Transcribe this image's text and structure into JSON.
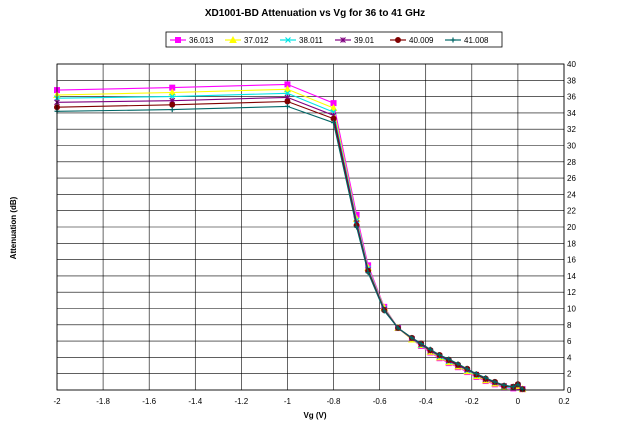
{
  "chart_data": {
    "type": "line",
    "title": "XD1001-BD Attenuation vs Vg for 36 to 41 GHz",
    "xlabel": "Vg (V)",
    "ylabel": "Attenuation (dB)",
    "xlim": [
      -2,
      0.2
    ],
    "ylim": [
      0,
      40
    ],
    "x_ticks": [
      -2,
      -1.8,
      -1.6,
      -1.4,
      -1.2,
      -1,
      -0.8,
      -0.6,
      -0.4,
      -0.2,
      0,
      0.2
    ],
    "x_tick_labels": [
      "-2",
      "-1.8",
      "-1.6",
      "-1.4",
      "-1.2",
      "-1",
      "-0.8",
      "-0.6",
      "-0.4",
      "-0.2",
      "0",
      "0.2"
    ],
    "y_ticks": [
      0,
      2,
      4,
      6,
      8,
      10,
      12,
      14,
      16,
      18,
      20,
      22,
      24,
      26,
      28,
      30,
      32,
      34,
      36,
      38,
      40
    ],
    "y_tick_labels": [
      "0",
      "2",
      "4",
      "6",
      "8",
      "10",
      "12",
      "14",
      "16",
      "18",
      "20",
      "22",
      "24",
      "26",
      "28",
      "30",
      "32",
      "34",
      "36",
      "38",
      "40"
    ],
    "grid": true,
    "y_axis_side": "right",
    "legend_position": "top",
    "x": [
      -2,
      -1.5,
      -1,
      -0.8,
      -0.7,
      -0.65,
      -0.58,
      -0.52,
      -0.46,
      -0.42,
      -0.38,
      -0.34,
      -0.3,
      -0.26,
      -0.22,
      -0.18,
      -0.14,
      -0.1,
      -0.06,
      -0.02,
      0,
      0.02
    ],
    "series": [
      {
        "name": "36.013",
        "color": "#ff00ff",
        "marker": "square",
        "values": [
          36.8,
          37.1,
          37.5,
          35.2,
          21.5,
          15.3,
          10.2,
          7.6,
          6.2,
          5.4,
          4.6,
          3.9,
          3.3,
          2.8,
          2.2,
          1.6,
          1.1,
          0.7,
          0.3,
          0.2,
          0.4,
          0.1
        ]
      },
      {
        "name": "37.012",
        "color": "#ffff00",
        "marker": "triangle",
        "values": [
          36.2,
          36.5,
          36.9,
          34.6,
          21.0,
          15.0,
          10.1,
          7.6,
          6.2,
          5.5,
          4.7,
          4.0,
          3.4,
          2.9,
          2.3,
          1.7,
          1.2,
          0.8,
          0.4,
          0.3,
          0.5,
          0.1
        ]
      },
      {
        "name": "38.011",
        "color": "#00e5e5",
        "marker": "x",
        "values": [
          35.8,
          36.0,
          36.4,
          34.1,
          20.8,
          14.9,
          10.0,
          7.6,
          6.3,
          5.5,
          4.8,
          4.1,
          3.5,
          3.0,
          2.4,
          1.8,
          1.3,
          0.9,
          0.4,
          0.3,
          0.6,
          0.1
        ]
      },
      {
        "name": "39.01",
        "color": "#800080",
        "marker": "star",
        "values": [
          35.3,
          35.5,
          35.9,
          33.7,
          20.5,
          14.7,
          9.9,
          7.6,
          6.3,
          5.6,
          4.8,
          4.2,
          3.6,
          3.0,
          2.5,
          1.9,
          1.3,
          0.9,
          0.5,
          0.4,
          0.6,
          0.1
        ]
      },
      {
        "name": "40.009",
        "color": "#800000",
        "marker": "circle",
        "values": [
          34.7,
          35.0,
          35.4,
          33.3,
          20.2,
          14.6,
          9.8,
          7.6,
          6.4,
          5.7,
          4.9,
          4.3,
          3.7,
          3.1,
          2.6,
          1.9,
          1.4,
          1.0,
          0.5,
          0.4,
          0.7,
          0.1
        ]
      },
      {
        "name": "41.008",
        "color": "#006666",
        "marker": "plus",
        "values": [
          34.2,
          34.4,
          34.8,
          32.8,
          20.0,
          14.4,
          9.7,
          7.6,
          6.4,
          5.7,
          5.0,
          4.3,
          3.8,
          3.2,
          2.6,
          2.0,
          1.5,
          1.0,
          0.6,
          0.4,
          0.7,
          0.1
        ]
      }
    ]
  }
}
